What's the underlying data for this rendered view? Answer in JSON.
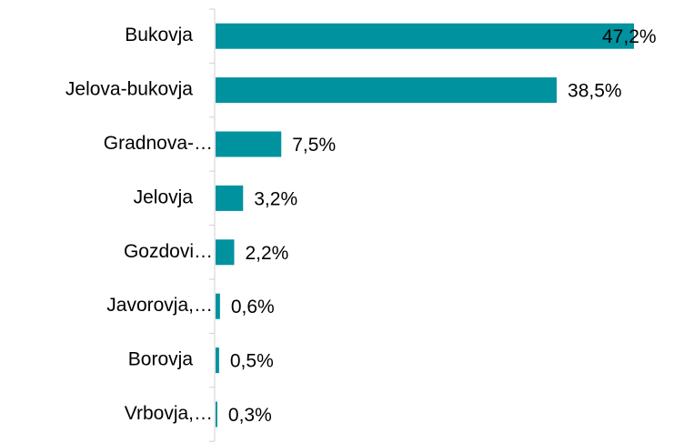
{
  "chart_data": {
    "type": "bar",
    "orientation": "horizontal",
    "categories": [
      "Bukovja",
      "Jelova-bukovja",
      "Gradnova-…",
      "Jelovja",
      "Gozdovi…",
      "Javorovja,…",
      "Borovja",
      "Vrbovja,…"
    ],
    "values": [
      47.2,
      38.5,
      7.5,
      3.2,
      2.2,
      0.6,
      0.5,
      0.3
    ],
    "value_labels": [
      "47,2%",
      "38,5%",
      "7,5%",
      "3,2%",
      "2,2%",
      "0,6%",
      "0,5%",
      "0,3%"
    ],
    "color": "#00929f"
  }
}
